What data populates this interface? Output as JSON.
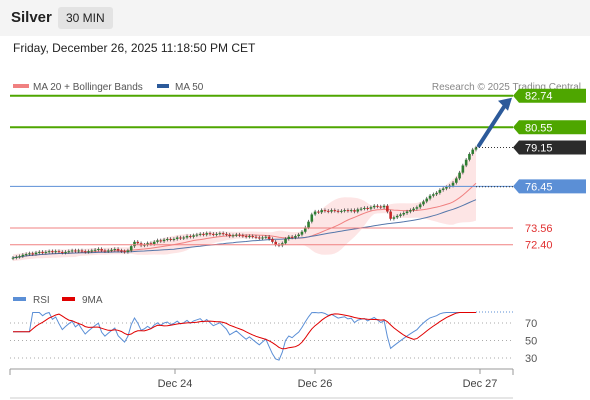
{
  "header": {
    "instrument": "Silver",
    "timeframe": "30 MIN"
  },
  "datetime": "Friday, December 26, 2025 11:18:50 PM CET",
  "legend": {
    "items": [
      {
        "label": "MA 20 + Bollinger Bands",
        "color": "#f08080"
      },
      {
        "label": "MA 50",
        "color": "#2c5a9a"
      }
    ],
    "credit": "Research © 2025 Trading Central"
  },
  "colors": {
    "candle_up": "#2e7d32",
    "candle_down": "#c62828",
    "bollinger_fill": "#fde0e0",
    "ma20": "#f08080",
    "ma50": "#5577aa",
    "resistance": "#4ea600",
    "support": "#f08080",
    "pivot": "#5b8fd6",
    "arrow": "#2c5a9a",
    "rsi": "#5b8fd6",
    "rsi_ma": "#e00000"
  },
  "chart_data": [
    {
      "type": "candlestick",
      "title": "",
      "x_tick_labels": [
        "Dec 24",
        "Dec 26",
        "Dec 27"
      ],
      "ylim": [
        71.2,
        83.9
      ],
      "series": [
        {
          "name": "MA 20 + Bollinger Bands"
        },
        {
          "name": "MA 50"
        }
      ],
      "price_levels": [
        {
          "value": 82.74,
          "label": "82.74",
          "kind": "resistance"
        },
        {
          "value": 80.55,
          "label": "80.55",
          "kind": "resistance"
        },
        {
          "value": 79.15,
          "label": "79.15",
          "kind": "last"
        },
        {
          "value": 76.45,
          "label": "76.45",
          "kind": "pivot"
        },
        {
          "value": 73.56,
          "label": "73.56",
          "kind": "support"
        },
        {
          "value": 72.4,
          "label": "72.40",
          "kind": "support"
        }
      ],
      "close": [
        71.5,
        71.55,
        71.6,
        71.7,
        71.75,
        71.8,
        71.75,
        71.85,
        71.9,
        71.85,
        71.9,
        71.95,
        71.9,
        71.95,
        71.9,
        71.85,
        71.9,
        71.95,
        72.0,
        71.95,
        72.0,
        71.95,
        71.9,
        71.95,
        72.0,
        72.05,
        72.1,
        72.0,
        71.95,
        72.0,
        72.05,
        72.1,
        72.0,
        71.95,
        71.9,
        72.0,
        72.3,
        72.6,
        72.5,
        72.35,
        72.4,
        72.5,
        72.45,
        72.6,
        72.7,
        72.65,
        72.75,
        72.8,
        72.75,
        72.8,
        72.9,
        72.85,
        72.9,
        73.0,
        72.95,
        73.05,
        73.1,
        73.15,
        73.1,
        73.2,
        73.15,
        73.1,
        73.15,
        73.2,
        73.15,
        73.1,
        73.0,
        73.05,
        73.1,
        73.05,
        73.0,
        72.95,
        73.0,
        72.95,
        72.9,
        72.85,
        72.9,
        72.95,
        72.8,
        72.6,
        72.4,
        72.35,
        72.5,
        72.8,
        72.95,
        72.9,
        73.0,
        73.1,
        73.3,
        73.6,
        74.0,
        74.5,
        74.7,
        74.65,
        74.8,
        74.75,
        74.7,
        74.8,
        74.75,
        74.7,
        74.75,
        74.8,
        74.75,
        74.8,
        74.7,
        74.85,
        74.9,
        74.95,
        74.9,
        75.0,
        75.1,
        75.05,
        75.0,
        75.1,
        74.7,
        74.2,
        74.3,
        74.4,
        74.5,
        74.6,
        74.7,
        74.8,
        74.9,
        75.0,
        75.2,
        75.4,
        75.6,
        75.8,
        75.9,
        76.0,
        76.2,
        76.3,
        76.4,
        76.5,
        76.7,
        77.0,
        77.4,
        77.9,
        78.3,
        78.7,
        79.0,
        79.15
      ],
      "rsi": {
        "levels": [
          70,
          50,
          30
        ],
        "series": [
          {
            "name": "RSI"
          },
          {
            "name": "9MA"
          }
        ]
      }
    }
  ]
}
